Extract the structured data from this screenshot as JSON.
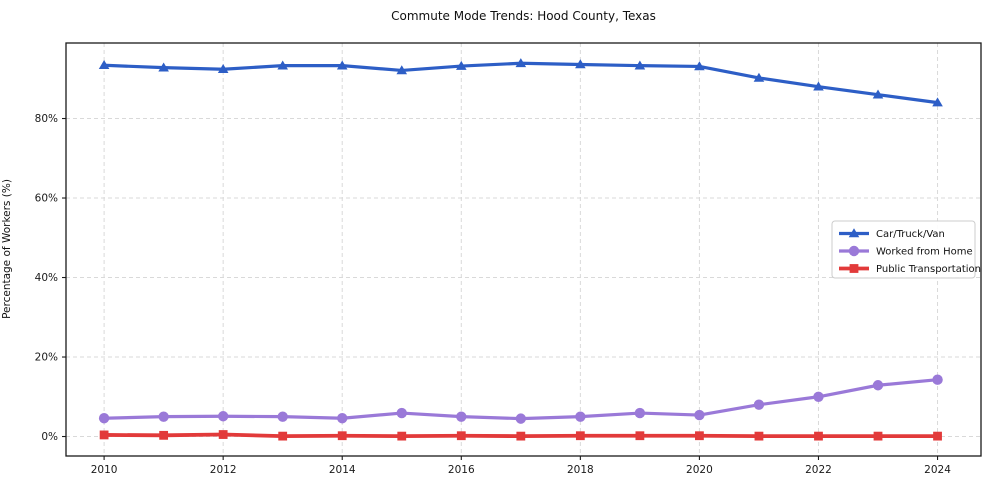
{
  "title": "Commute Mode Trends: Hood County, Texas",
  "chart_data": {
    "type": "line",
    "title": "Commute Mode Trends: Hood County, Texas",
    "xlabel": "",
    "ylabel": "Percentage of Workers (%)",
    "x": [
      2010,
      2011,
      2012,
      2013,
      2014,
      2015,
      2016,
      2017,
      2018,
      2019,
      2020,
      2021,
      2022,
      2023,
      2024
    ],
    "x_ticks": [
      2010,
      2012,
      2014,
      2016,
      2018,
      2020,
      2022,
      2024
    ],
    "y_ticks": [
      0,
      20,
      40,
      60,
      80
    ],
    "y_tick_suffix": "%",
    "xlim": [
      2009.36,
      2024.73
    ],
    "ylim": [
      -4.9,
      99.0
    ],
    "grid": true,
    "grid_style": "dashed",
    "legend_position": "center-right",
    "series": [
      {
        "name": "Car/Truck/Van",
        "color": "#2d5ec6",
        "marker": "triangle",
        "values": [
          93.4,
          92.8,
          92.4,
          93.3,
          93.3,
          92.1,
          93.2,
          93.9,
          93.6,
          93.3,
          93.1,
          90.2,
          88.0,
          86.0,
          84.0
        ]
      },
      {
        "name": "Worked from Home",
        "color": "#9a79d8",
        "marker": "circle",
        "values": [
          4.6,
          5.0,
          5.1,
          5.0,
          4.6,
          5.9,
          5.0,
          4.5,
          5.0,
          5.9,
          5.4,
          8.0,
          10.0,
          12.9,
          14.3
        ]
      },
      {
        "name": "Public Transportation",
        "color": "#e23a3a",
        "marker": "square",
        "values": [
          0.4,
          0.3,
          0.5,
          0.1,
          0.2,
          0.1,
          0.2,
          0.1,
          0.2,
          0.2,
          0.2,
          0.1,
          0.1,
          0.1,
          0.1
        ]
      }
    ]
  },
  "colors": {
    "spine": "#1a1a1a",
    "grid": "#d9d9d9",
    "tick_text": "#1a1a1a",
    "legend_border": "#cccccc",
    "background": "#ffffff"
  }
}
